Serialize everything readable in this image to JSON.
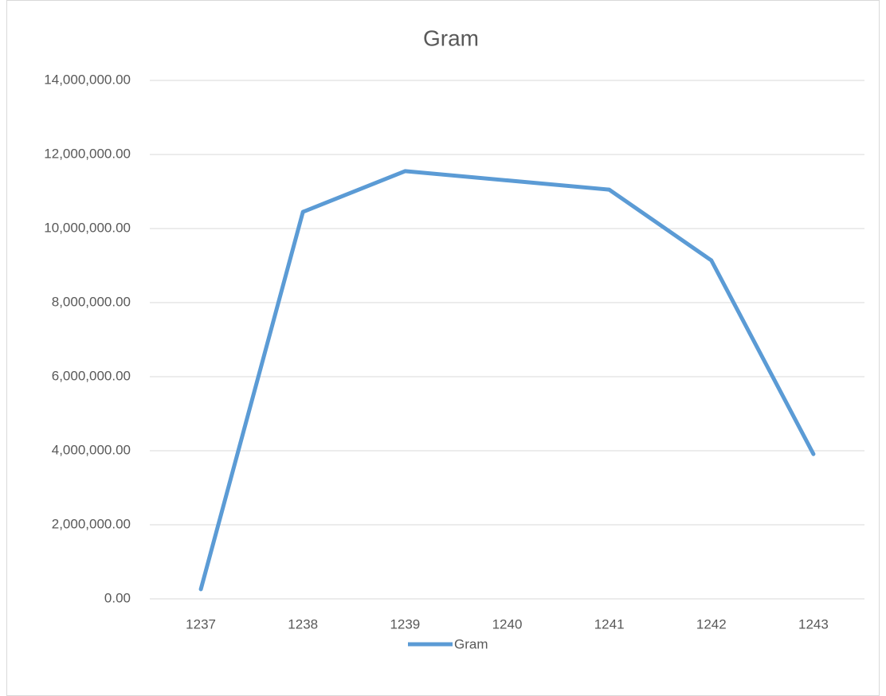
{
  "chart_data": {
    "type": "line",
    "title": "Gram",
    "categories": [
      "1237",
      "1238",
      "1239",
      "1240",
      "1241",
      "1242",
      "1243"
    ],
    "series": [
      {
        "name": "Gram",
        "color": "#5b9bd5",
        "values": [
          260000,
          10450000,
          11550000,
          11300000,
          11050000,
          9140000,
          3910000
        ]
      }
    ],
    "ylim": [
      0,
      14000000
    ],
    "yticks": [
      {
        "value": 0,
        "label": "0.00"
      },
      {
        "value": 2000000,
        "label": "2,000,000.00"
      },
      {
        "value": 4000000,
        "label": "4,000,000.00"
      },
      {
        "value": 6000000,
        "label": "6,000,000.00"
      },
      {
        "value": 8000000,
        "label": "8,000,000.00"
      },
      {
        "value": 10000000,
        "label": "10,000,000.00"
      },
      {
        "value": 12000000,
        "label": "12,000,000.00"
      },
      {
        "value": 14000000,
        "label": "14,000,000.00"
      }
    ],
    "grid": true,
    "legend": "bottom"
  }
}
